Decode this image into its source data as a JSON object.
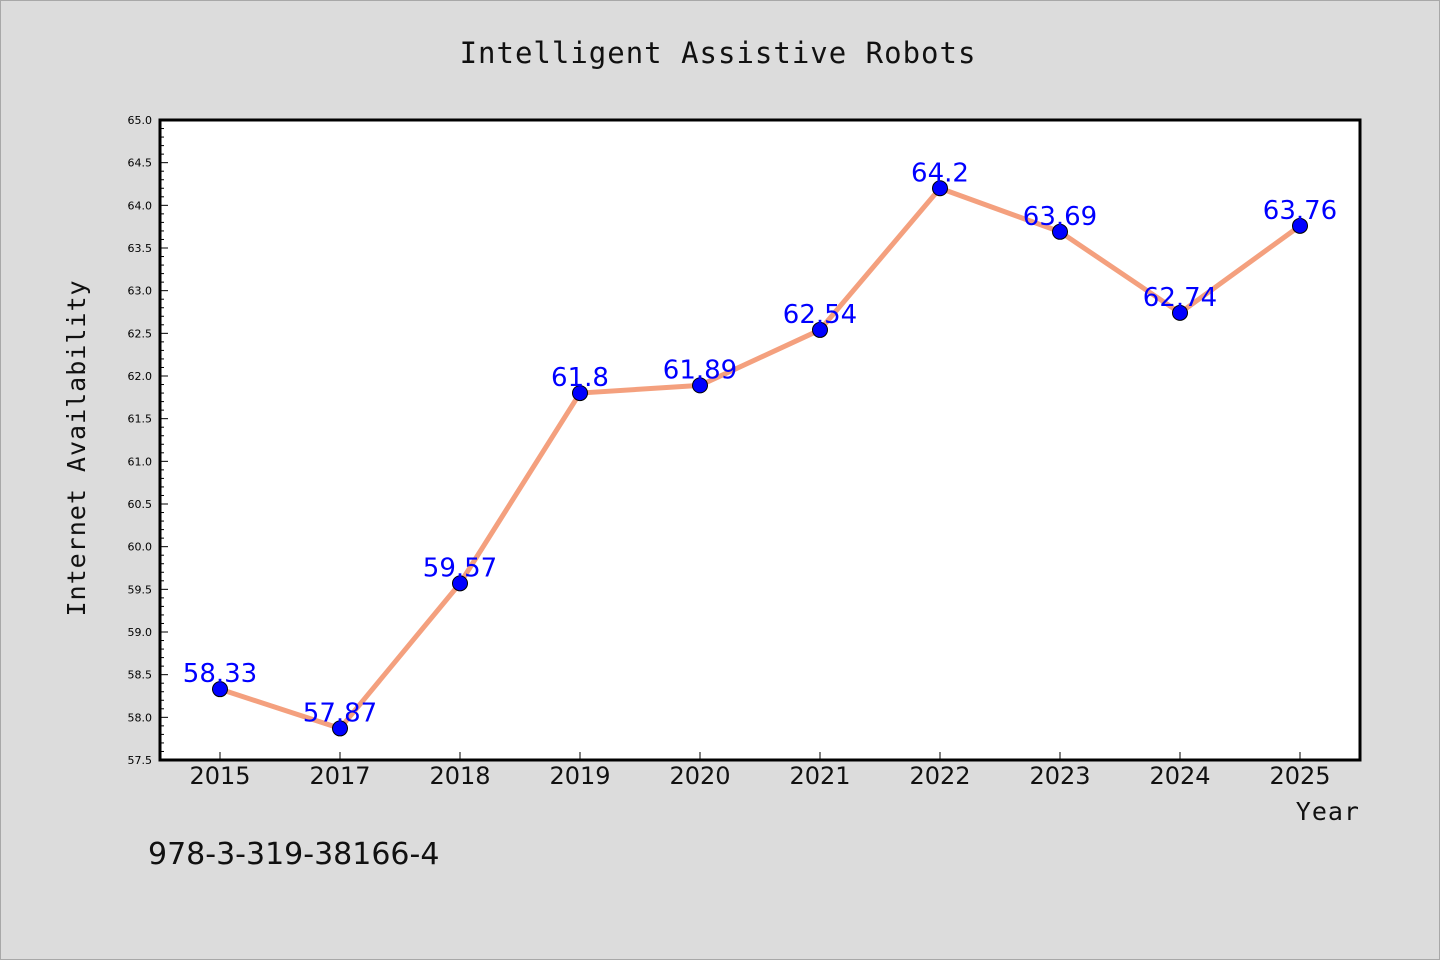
{
  "footer_text": "978-3-319-38166-4",
  "chart_data": {
    "type": "line",
    "title": "Intelligent Assistive Robots",
    "xlabel": "Year",
    "ylabel": "Internet Availability",
    "categories": [
      "2015",
      "2017",
      "2018",
      "2019",
      "2020",
      "2021",
      "2022",
      "2023",
      "2024",
      "2025"
    ],
    "series": [
      {
        "values": [
          58.33,
          57.87,
          59.57,
          61.8,
          61.89,
          62.54,
          64.2,
          63.69,
          62.74,
          63.76
        ],
        "labels": [
          "58.33",
          "57.87",
          "59.57",
          "61.8",
          "61.89",
          "62.54",
          "64.2",
          "63.69",
          "62.74",
          "63.76"
        ],
        "line_color": "#f4a07e",
        "marker_color": "#0000ff"
      }
    ],
    "ylim": [
      57.5,
      65.0
    ],
    "yticks": [
      "57.5",
      "58.0",
      "58.5",
      "59.0",
      "59.5",
      "60.0",
      "60.5",
      "61.0",
      "61.5",
      "62.0",
      "62.5",
      "63.0",
      "63.5",
      "64.0",
      "64.5",
      "65.0"
    ],
    "grid": false,
    "background": "#dcdcdc",
    "plot_background": "#ffffff"
  }
}
